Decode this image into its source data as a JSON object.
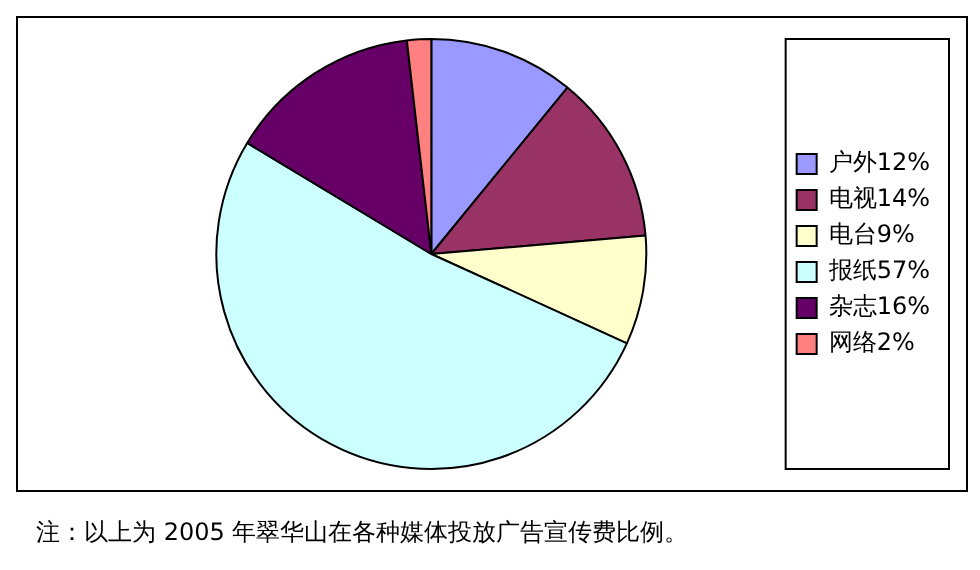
{
  "chart_data": {
    "type": "pie",
    "categories": [
      "户外12%",
      "电视14%",
      "电台9%",
      "报纸57%",
      "杂志16%",
      "网络2%"
    ],
    "values": [
      12,
      14,
      9,
      57,
      16,
      2
    ],
    "colors": [
      "#9999ff",
      "#993366",
      "#ffffcc",
      "#ccffff",
      "#660066",
      "#ff8080"
    ],
    "legend": "right",
    "annotations": [
      "注：以上为 2005 年翠华山在各种媒体投放广告宣传费比例。"
    ]
  }
}
